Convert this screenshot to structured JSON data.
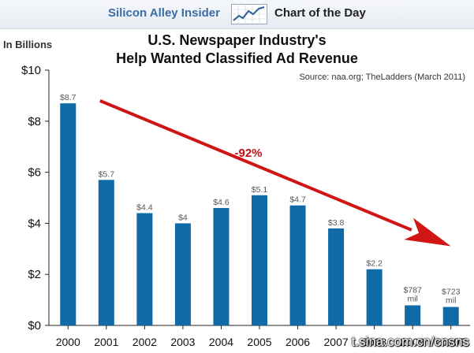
{
  "header": {
    "brand": "Silicon Alley Insider",
    "tagline": "Chart of the Day"
  },
  "units_label": "In Billions",
  "source": "Source: naa.org; TheLadders (March 2011)",
  "watermark": "t.sina.com.cn/cnsns",
  "colors": {
    "bar": "#0f6aa6",
    "arrow": "#d01515",
    "label": "#555555",
    "axis": "#222222"
  },
  "chart_data": {
    "type": "bar",
    "title_lines": [
      "U.S. Newspaper Industry's",
      "Help Wanted Classified Ad Revenue"
    ],
    "categories": [
      "2000",
      "2001",
      "2002",
      "2003",
      "2004",
      "2005",
      "2006",
      "2007",
      "2008",
      "2009",
      "2010E"
    ],
    "values": [
      8.7,
      5.7,
      4.4,
      4.0,
      4.6,
      5.1,
      4.7,
      3.8,
      2.2,
      0.787,
      0.723
    ],
    "data_labels": [
      "$8.7",
      "$5.7",
      "$4.4",
      "$4",
      "$4.6",
      "$5.1",
      "$4.7",
      "$3.8",
      "$2.2",
      "$787 mil",
      "$723 mil"
    ],
    "y_ticks": [
      0,
      2,
      4,
      6,
      8,
      10
    ],
    "y_tick_labels": [
      "$0",
      "$2",
      "$4",
      "$6",
      "$8",
      "$10"
    ],
    "ylim": [
      0,
      10
    ],
    "ylabel": "In Billions",
    "annotation": {
      "text": "-92%",
      "arrow_from": {
        "category": "2001",
        "value": 8.8
      },
      "arrow_to": {
        "category": "2010E",
        "value": 3.1
      },
      "text_at": {
        "category": "2005",
        "value": 6.6
      }
    },
    "grid": false,
    "legend": "none"
  }
}
